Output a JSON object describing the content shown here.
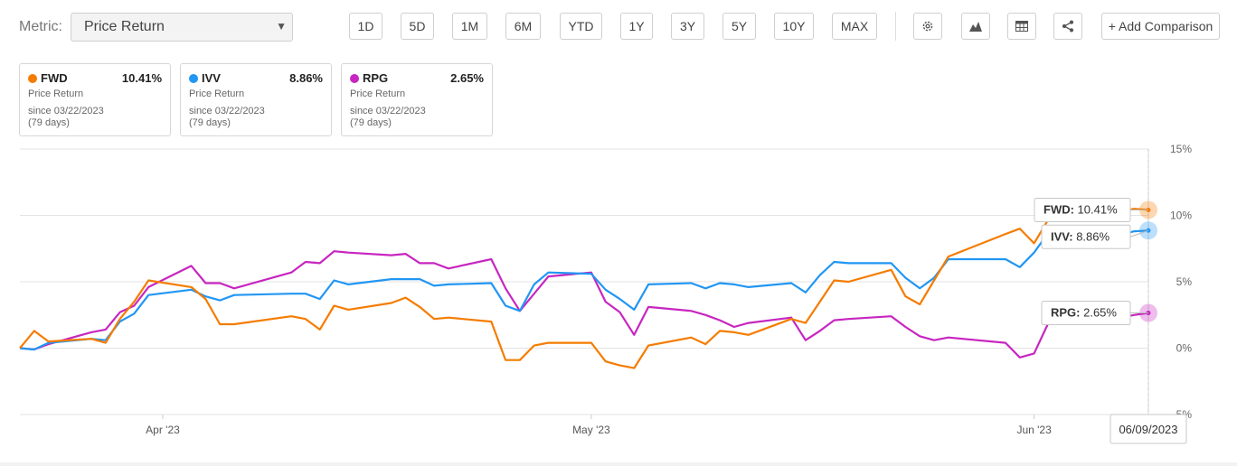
{
  "toolbar": {
    "metric_label": "Metric:",
    "metric_value": "Price Return",
    "ranges": [
      "1D",
      "5D",
      "1M",
      "6M",
      "YTD",
      "1Y",
      "3Y",
      "5Y",
      "10Y",
      "MAX"
    ],
    "tools": [
      "settings-icon",
      "mountain-chart-icon",
      "table-icon",
      "share-icon"
    ],
    "add_comparison": "+ Add Comparison"
  },
  "cards": [
    {
      "ticker": "FWD",
      "value": "10.41%",
      "metric": "Price Return",
      "since": "since 03/22/2023",
      "days": "(79 days)",
      "color": "#f57c00"
    },
    {
      "ticker": "IVV",
      "value": "8.86%",
      "metric": "Price Return",
      "since": "since 03/22/2023",
      "days": "(79 days)",
      "color": "#2196f3"
    },
    {
      "ticker": "RPG",
      "value": "2.65%",
      "metric": "Price Return",
      "since": "since 03/22/2023",
      "days": "(79 days)",
      "color": "#c726c0"
    }
  ],
  "chart_data": {
    "type": "line",
    "x_start": "2023-03-22",
    "x_end": "2023-06-09",
    "xticks": [
      {
        "label": "Apr '23",
        "date": "2023-04-01"
      },
      {
        "label": "May '23",
        "date": "2023-05-01"
      },
      {
        "label": "Jun '23",
        "date": "2023-06-01"
      }
    ],
    "ylim": [
      -5,
      15
    ],
    "yticks": [
      {
        "value": 15,
        "label": "15%"
      },
      {
        "value": 10,
        "label": "10%"
      },
      {
        "value": 5,
        "label": "5%"
      },
      {
        "value": 0,
        "label": "0%"
      },
      {
        "value": -5,
        "label": "-5%"
      }
    ],
    "series": [
      {
        "name": "FWD",
        "color": "#f57c00",
        "end_label": "FWD: 10.41%",
        "points": [
          [
            "2023-03-22",
            0
          ],
          [
            "2023-03-23",
            1.3
          ],
          [
            "2023-03-24",
            0.5
          ],
          [
            "2023-03-27",
            0.7
          ],
          [
            "2023-03-28",
            0.4
          ],
          [
            "2023-03-29",
            2.2
          ],
          [
            "2023-03-30",
            3.5
          ],
          [
            "2023-03-31",
            5.1
          ],
          [
            "2023-04-03",
            4.6
          ],
          [
            "2023-04-04",
            3.7
          ],
          [
            "2023-04-05",
            1.8
          ],
          [
            "2023-04-06",
            1.8
          ],
          [
            "2023-04-10",
            2.4
          ],
          [
            "2023-04-11",
            2.2
          ],
          [
            "2023-04-12",
            1.4
          ],
          [
            "2023-04-13",
            3.2
          ],
          [
            "2023-04-14",
            2.9
          ],
          [
            "2023-04-17",
            3.4
          ],
          [
            "2023-04-18",
            3.8
          ],
          [
            "2023-04-19",
            3.1
          ],
          [
            "2023-04-20",
            2.2
          ],
          [
            "2023-04-21",
            2.3
          ],
          [
            "2023-04-24",
            2.0
          ],
          [
            "2023-04-25",
            -0.9
          ],
          [
            "2023-04-26",
            -0.9
          ],
          [
            "2023-04-27",
            0.2
          ],
          [
            "2023-04-28",
            0.4
          ],
          [
            "2023-05-01",
            0.4
          ],
          [
            "2023-05-02",
            -1.0
          ],
          [
            "2023-05-03",
            -1.3
          ],
          [
            "2023-05-04",
            -1.5
          ],
          [
            "2023-05-05",
            0.2
          ],
          [
            "2023-05-08",
            0.8
          ],
          [
            "2023-05-09",
            0.3
          ],
          [
            "2023-05-10",
            1.3
          ],
          [
            "2023-05-11",
            1.2
          ],
          [
            "2023-05-12",
            1.0
          ],
          [
            "2023-05-15",
            2.2
          ],
          [
            "2023-05-16",
            1.9
          ],
          [
            "2023-05-17",
            3.5
          ],
          [
            "2023-05-18",
            5.1
          ],
          [
            "2023-05-19",
            5.0
          ],
          [
            "2023-05-22",
            5.9
          ],
          [
            "2023-05-23",
            3.9
          ],
          [
            "2023-05-24",
            3.3
          ],
          [
            "2023-05-25",
            5.1
          ],
          [
            "2023-05-26",
            6.9
          ],
          [
            "2023-05-30",
            8.6
          ],
          [
            "2023-05-31",
            9.0
          ],
          [
            "2023-06-01",
            7.9
          ],
          [
            "2023-06-02",
            9.7
          ],
          [
            "2023-06-05",
            10.2
          ],
          [
            "2023-06-06",
            10.6
          ],
          [
            "2023-06-07",
            10.3
          ],
          [
            "2023-06-08",
            10.5
          ],
          [
            "2023-06-09",
            10.41
          ]
        ]
      },
      {
        "name": "IVV",
        "color": "#2196f3",
        "end_label": "IVV: 8.86%",
        "points": [
          [
            "2023-03-22",
            0
          ],
          [
            "2023-03-23",
            -0.1
          ],
          [
            "2023-03-24",
            0.4
          ],
          [
            "2023-03-27",
            0.7
          ],
          [
            "2023-03-28",
            0.6
          ],
          [
            "2023-03-29",
            2.0
          ],
          [
            "2023-03-30",
            2.6
          ],
          [
            "2023-03-31",
            4.0
          ],
          [
            "2023-04-03",
            4.4
          ],
          [
            "2023-04-04",
            3.9
          ],
          [
            "2023-04-05",
            3.6
          ],
          [
            "2023-04-06",
            4.0
          ],
          [
            "2023-04-10",
            4.1
          ],
          [
            "2023-04-11",
            4.1
          ],
          [
            "2023-04-12",
            3.7
          ],
          [
            "2023-04-13",
            5.1
          ],
          [
            "2023-04-14",
            4.8
          ],
          [
            "2023-04-17",
            5.2
          ],
          [
            "2023-04-18",
            5.2
          ],
          [
            "2023-04-19",
            5.2
          ],
          [
            "2023-04-20",
            4.7
          ],
          [
            "2023-04-21",
            4.8
          ],
          [
            "2023-04-24",
            4.9
          ],
          [
            "2023-04-25",
            3.2
          ],
          [
            "2023-04-26",
            2.8
          ],
          [
            "2023-04-27",
            4.8
          ],
          [
            "2023-04-28",
            5.7
          ],
          [
            "2023-05-01",
            5.6
          ],
          [
            "2023-05-02",
            4.4
          ],
          [
            "2023-05-03",
            3.7
          ],
          [
            "2023-05-04",
            2.9
          ],
          [
            "2023-05-05",
            4.8
          ],
          [
            "2023-05-08",
            4.9
          ],
          [
            "2023-05-09",
            4.5
          ],
          [
            "2023-05-10",
            4.9
          ],
          [
            "2023-05-11",
            4.8
          ],
          [
            "2023-05-12",
            4.6
          ],
          [
            "2023-05-15",
            4.9
          ],
          [
            "2023-05-16",
            4.2
          ],
          [
            "2023-05-17",
            5.5
          ],
          [
            "2023-05-18",
            6.5
          ],
          [
            "2023-05-19",
            6.4
          ],
          [
            "2023-05-22",
            6.4
          ],
          [
            "2023-05-23",
            5.3
          ],
          [
            "2023-05-24",
            4.5
          ],
          [
            "2023-05-25",
            5.3
          ],
          [
            "2023-05-26",
            6.7
          ],
          [
            "2023-05-30",
            6.7
          ],
          [
            "2023-05-31",
            6.1
          ],
          [
            "2023-06-01",
            7.2
          ],
          [
            "2023-06-02",
            8.7
          ],
          [
            "2023-06-05",
            8.6
          ],
          [
            "2023-06-06",
            8.7
          ],
          [
            "2023-06-07",
            8.5
          ],
          [
            "2023-06-08",
            8.8
          ],
          [
            "2023-06-09",
            8.86
          ]
        ]
      },
      {
        "name": "RPG",
        "color": "#c726c0",
        "end_label": "RPG: 2.65%",
        "points": [
          [
            "2023-03-22",
            0
          ],
          [
            "2023-03-23",
            -0.1
          ],
          [
            "2023-03-24",
            0.3
          ],
          [
            "2023-03-27",
            1.2
          ],
          [
            "2023-03-28",
            1.4
          ],
          [
            "2023-03-29",
            2.7
          ],
          [
            "2023-03-30",
            3.2
          ],
          [
            "2023-03-31",
            4.6
          ],
          [
            "2023-04-03",
            6.2
          ],
          [
            "2023-04-04",
            4.9
          ],
          [
            "2023-04-05",
            4.9
          ],
          [
            "2023-04-06",
            4.5
          ],
          [
            "2023-04-10",
            5.7
          ],
          [
            "2023-04-11",
            6.5
          ],
          [
            "2023-04-12",
            6.4
          ],
          [
            "2023-04-13",
            7.3
          ],
          [
            "2023-04-14",
            7.2
          ],
          [
            "2023-04-17",
            7.0
          ],
          [
            "2023-04-18",
            7.1
          ],
          [
            "2023-04-19",
            6.4
          ],
          [
            "2023-04-20",
            6.4
          ],
          [
            "2023-04-21",
            6.0
          ],
          [
            "2023-04-24",
            6.7
          ],
          [
            "2023-04-25",
            4.5
          ],
          [
            "2023-04-26",
            2.8
          ],
          [
            "2023-04-27",
            4.1
          ],
          [
            "2023-04-28",
            5.4
          ],
          [
            "2023-05-01",
            5.7
          ],
          [
            "2023-05-02",
            3.5
          ],
          [
            "2023-05-03",
            2.7
          ],
          [
            "2023-05-04",
            1.0
          ],
          [
            "2023-05-05",
            3.1
          ],
          [
            "2023-05-08",
            2.8
          ],
          [
            "2023-05-09",
            2.5
          ],
          [
            "2023-05-10",
            2.1
          ],
          [
            "2023-05-11",
            1.6
          ],
          [
            "2023-05-12",
            1.9
          ],
          [
            "2023-05-15",
            2.3
          ],
          [
            "2023-05-16",
            0.6
          ],
          [
            "2023-05-17",
            1.3
          ],
          [
            "2023-05-18",
            2.1
          ],
          [
            "2023-05-19",
            2.2
          ],
          [
            "2023-05-22",
            2.4
          ],
          [
            "2023-05-23",
            1.6
          ],
          [
            "2023-05-24",
            0.9
          ],
          [
            "2023-05-25",
            0.6
          ],
          [
            "2023-05-26",
            0.8
          ],
          [
            "2023-05-30",
            0.4
          ],
          [
            "2023-05-31",
            -0.7
          ],
          [
            "2023-06-01",
            -0.4
          ],
          [
            "2023-06-02",
            1.9
          ],
          [
            "2023-06-05",
            2.5
          ],
          [
            "2023-06-06",
            2.8
          ],
          [
            "2023-06-07",
            2.3
          ],
          [
            "2023-06-08",
            2.5
          ],
          [
            "2023-06-09",
            2.65
          ]
        ]
      }
    ],
    "crosshair_date_label": "06/09/2023",
    "grid": true
  }
}
